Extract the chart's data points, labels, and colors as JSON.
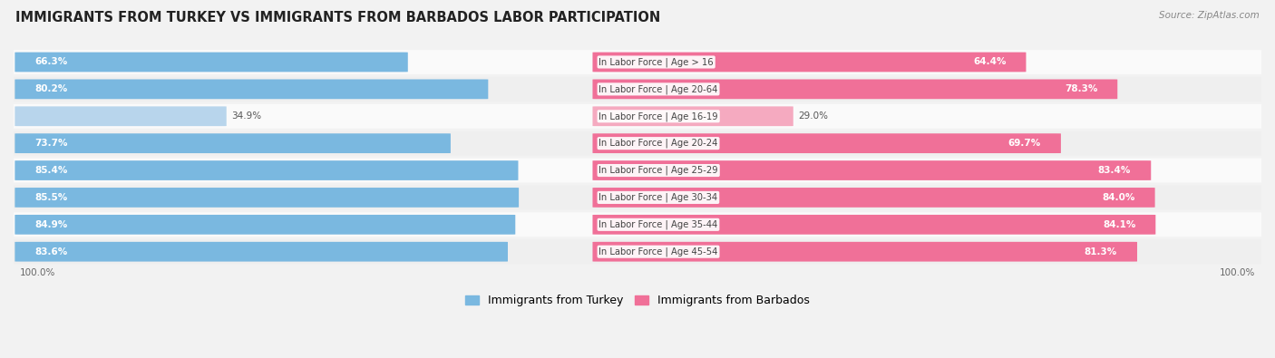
{
  "title": "IMMIGRANTS FROM TURKEY VS IMMIGRANTS FROM BARBADOS LABOR PARTICIPATION",
  "source": "Source: ZipAtlas.com",
  "categories": [
    "In Labor Force | Age > 16",
    "In Labor Force | Age 20-64",
    "In Labor Force | Age 16-19",
    "In Labor Force | Age 20-24",
    "In Labor Force | Age 25-29",
    "In Labor Force | Age 30-34",
    "In Labor Force | Age 35-44",
    "In Labor Force | Age 45-54"
  ],
  "turkey_values": [
    66.3,
    80.2,
    34.9,
    73.7,
    85.4,
    85.5,
    84.9,
    83.6
  ],
  "barbados_values": [
    64.4,
    78.3,
    29.0,
    69.7,
    83.4,
    84.0,
    84.1,
    81.3
  ],
  "turkey_color": "#7ab8e0",
  "turkey_color_light": "#b8d5ec",
  "barbados_color": "#f07098",
  "barbados_color_light": "#f5aac0",
  "bg_color": "#f2f2f2",
  "row_bg_light": "#fafafa",
  "row_bg_dark": "#efefef",
  "legend_turkey": "Immigrants from Turkey",
  "legend_barbados": "Immigrants from Barbados",
  "title_fontsize": 10.5,
  "bar_label_fontsize": 7.5,
  "cat_label_fontsize": 7.2,
  "tick_fontsize": 7.5,
  "source_fontsize": 7.5
}
